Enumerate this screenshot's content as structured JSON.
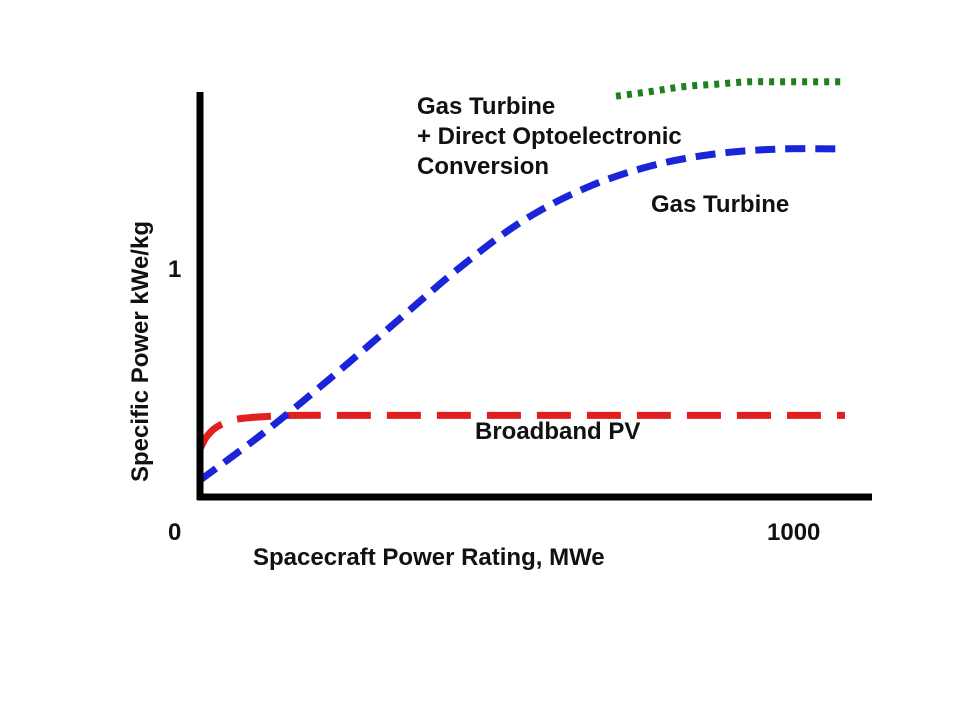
{
  "chart_data": {
    "type": "line",
    "xlabel": "Spacecraft Power Rating, MWe",
    "ylabel": "Specific Power kWe/kg",
    "xlim": [
      0,
      1000
    ],
    "ylim": [
      0,
      1.7
    ],
    "x_ticks": [
      {
        "value": 0,
        "label": "0"
      },
      {
        "value": 1000,
        "label": "1000"
      }
    ],
    "y_ticks": [
      {
        "value": 1,
        "label": "1"
      }
    ],
    "grid": false,
    "legend": "none",
    "series": [
      {
        "name": "Broadband PV",
        "color": "#e02020",
        "style": "long-dash",
        "x": [
          0,
          10,
          25,
          50,
          75,
          100,
          150,
          300,
          500,
          700,
          900,
          1000
        ],
        "y": [
          0.2,
          0.25,
          0.29,
          0.32,
          0.33,
          0.335,
          0.34,
          0.34,
          0.34,
          0.34,
          0.34,
          0.34
        ]
      },
      {
        "name": "Gas Turbine",
        "color": "#1a24d8",
        "style": "dash",
        "x": [
          0,
          100,
          200,
          300,
          400,
          500,
          600,
          700,
          800,
          900,
          1000
        ],
        "y": [
          0.07,
          0.27,
          0.49,
          0.72,
          0.95,
          1.15,
          1.29,
          1.38,
          1.43,
          1.45,
          1.45
        ]
      },
      {
        "name": "Gas Turbine + Direct Optoelectronic Conversion",
        "color": "#208020",
        "style": "dot",
        "x": [
          645,
          700,
          750,
          800,
          850,
          900,
          950,
          1000
        ],
        "y": [
          1.67,
          1.69,
          1.71,
          1.72,
          1.73,
          1.73,
          1.73,
          1.73
        ]
      }
    ],
    "annotations": {
      "broadband_pv": "Broadband PV",
      "gas_turbine": "Gas Turbine",
      "combined_line1": "Gas Turbine",
      "combined_line2": "+ Direct Optoelectronic",
      "combined_line3": "Conversion"
    }
  }
}
